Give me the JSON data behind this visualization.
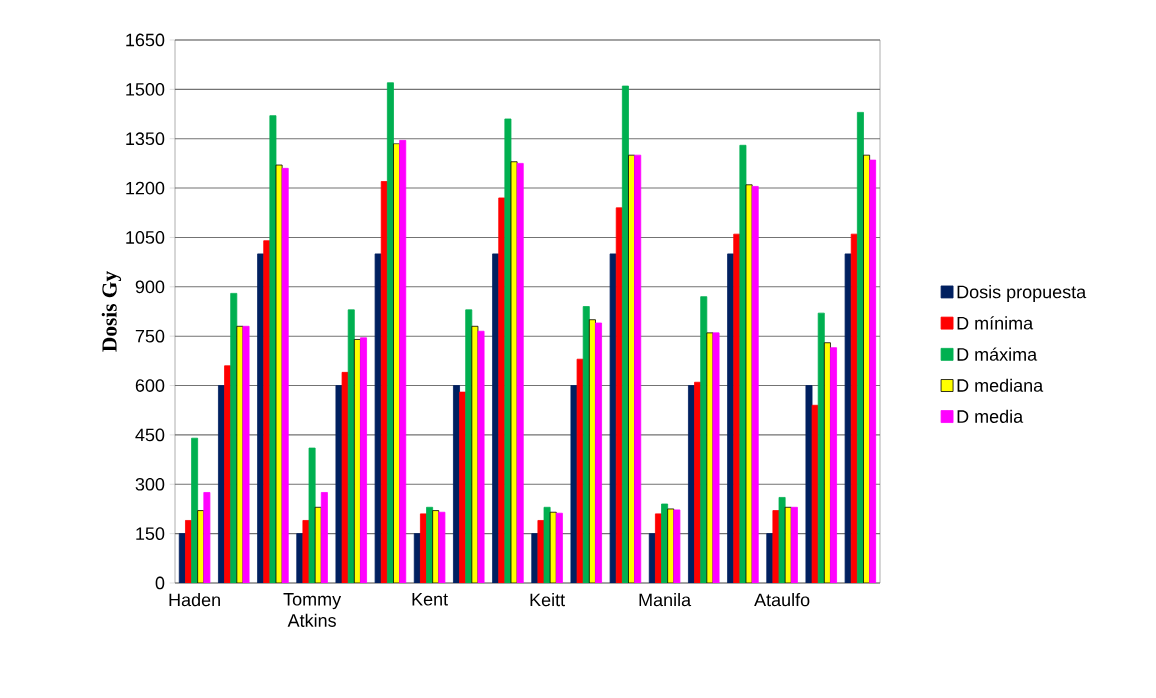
{
  "chart_data": {
    "type": "bar",
    "ylabel": "Dosis Gy",
    "categories": [
      "Haden",
      null,
      null,
      "Tommy Atkins",
      null,
      null,
      "Kent",
      null,
      null,
      "Keitt",
      null,
      null,
      "Manila",
      null,
      null,
      "Ataulfo",
      null,
      null
    ],
    "series": [
      {
        "name": "Dosis propuesta",
        "color": "#002060",
        "values": [
          150,
          600,
          1000,
          150,
          600,
          1000,
          150,
          600,
          1000,
          150,
          600,
          1000,
          150,
          600,
          1000,
          150,
          600,
          1000
        ]
      },
      {
        "name": "D mínima",
        "color": "#ff0000",
        "values": [
          190,
          660,
          1040,
          190,
          640,
          1220,
          210,
          580,
          1170,
          190,
          680,
          1140,
          210,
          610,
          1060,
          220,
          540,
          1060
        ]
      },
      {
        "name": "D máxima",
        "color": "#00b050",
        "values": [
          440,
          880,
          1420,
          410,
          830,
          1520,
          230,
          830,
          1410,
          230,
          840,
          1510,
          240,
          870,
          1330,
          260,
          820,
          1430
        ]
      },
      {
        "name": "D mediana",
        "color": "#ffff00",
        "values": [
          220,
          780,
          1270,
          230,
          740,
          1335,
          220,
          780,
          1280,
          215,
          800,
          1300,
          225,
          760,
          1210,
          230,
          730,
          1300
        ]
      },
      {
        "name": "D media",
        "color": "#ff00ff",
        "values": [
          275,
          780,
          1260,
          275,
          745,
          1345,
          215,
          765,
          1275,
          212,
          790,
          1300,
          222,
          760,
          1205,
          230,
          715,
          1285
        ]
      }
    ],
    "ylim": [
      0,
      1650
    ],
    "yticks": [
      0,
      150,
      300,
      450,
      600,
      750,
      900,
      1050,
      1200,
      1350,
      1500,
      1650
    ],
    "grid": "y",
    "legend": "right"
  }
}
